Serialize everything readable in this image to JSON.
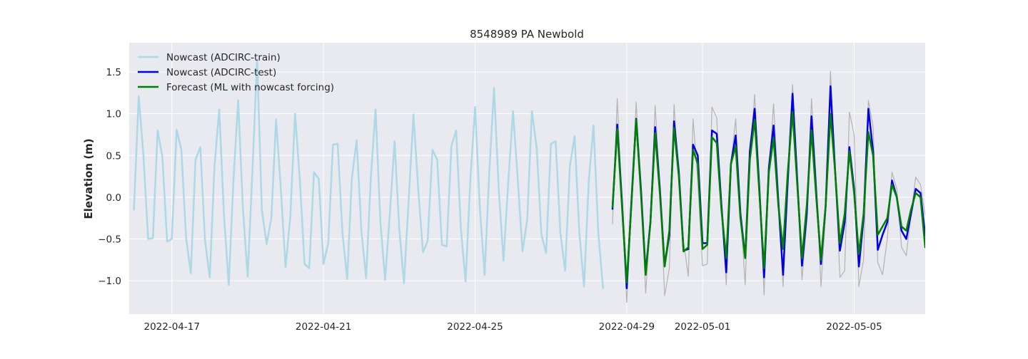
{
  "chart_data": {
    "type": "line",
    "title": "8548989 PA Newbold",
    "xlabel": "",
    "ylabel": "Elevation (m)",
    "xlim": [
      "2022-04-15T21:00",
      "2022-05-06T21:00"
    ],
    "ylim": [
      -1.4,
      1.85
    ],
    "x_ticks": [
      "2022-04-17",
      "2022-04-21",
      "2022-04-25",
      "2022-04-29",
      "2022-05-01",
      "2022-05-05"
    ],
    "y_ticks": [
      -1.0,
      -0.5,
      0.0,
      0.5,
      1.0,
      1.5
    ],
    "y_tick_labels": [
      "−1.0",
      "−0.5",
      "0.0",
      "0.5",
      "1.0",
      "1.5"
    ],
    "grid": true,
    "legend_position": "top-left",
    "style": {
      "plot_bg": "#e9e9f0",
      "grid": "#ffffff"
    },
    "series": [
      {
        "name": "Nowcast (ADCIRC-train)",
        "color": "#add8e6",
        "width": 2.5,
        "legend": true,
        "x": [
          "2022-04-16T00:00",
          "2022-04-16T03:00",
          "2022-04-16T06:00",
          "2022-04-16T09:00",
          "2022-04-16T12:00",
          "2022-04-16T15:00",
          "2022-04-16T18:00",
          "2022-04-16T21:00",
          "2022-04-17T00:00",
          "2022-04-17T03:00",
          "2022-04-17T06:00",
          "2022-04-17T09:00",
          "2022-04-17T12:00",
          "2022-04-17T15:00",
          "2022-04-17T18:00",
          "2022-04-17T21:00",
          "2022-04-18T00:00",
          "2022-04-18T03:00",
          "2022-04-18T06:00",
          "2022-04-18T09:00",
          "2022-04-18T12:00",
          "2022-04-18T15:00",
          "2022-04-18T18:00",
          "2022-04-18T21:00",
          "2022-04-19T00:00",
          "2022-04-19T03:00",
          "2022-04-19T06:00",
          "2022-04-19T09:00",
          "2022-04-19T12:00",
          "2022-04-19T15:00",
          "2022-04-19T18:00",
          "2022-04-19T21:00",
          "2022-04-20T00:00",
          "2022-04-20T03:00",
          "2022-04-20T06:00",
          "2022-04-20T09:00",
          "2022-04-20T12:00",
          "2022-04-20T15:00",
          "2022-04-20T18:00",
          "2022-04-20T21:00",
          "2022-04-21T00:00",
          "2022-04-21T03:00",
          "2022-04-21T06:00",
          "2022-04-21T09:00",
          "2022-04-21T12:00",
          "2022-04-21T15:00",
          "2022-04-21T18:00",
          "2022-04-21T21:00",
          "2022-04-22T00:00",
          "2022-04-22T03:00",
          "2022-04-22T06:00",
          "2022-04-22T09:00",
          "2022-04-22T12:00",
          "2022-04-22T15:00",
          "2022-04-22T18:00",
          "2022-04-22T21:00",
          "2022-04-23T00:00",
          "2022-04-23T03:00",
          "2022-04-23T06:00",
          "2022-04-23T09:00",
          "2022-04-23T12:00",
          "2022-04-23T15:00",
          "2022-04-23T18:00",
          "2022-04-23T21:00",
          "2022-04-24T00:00",
          "2022-04-24T03:00",
          "2022-04-24T06:00",
          "2022-04-24T09:00",
          "2022-04-24T12:00",
          "2022-04-24T15:00",
          "2022-04-24T18:00",
          "2022-04-24T21:00",
          "2022-04-25T00:00",
          "2022-04-25T03:00",
          "2022-04-25T06:00",
          "2022-04-25T09:00",
          "2022-04-25T12:00",
          "2022-04-25T15:00",
          "2022-04-25T18:00",
          "2022-04-25T21:00",
          "2022-04-26T00:00",
          "2022-04-26T03:00",
          "2022-04-26T06:00",
          "2022-04-26T09:00",
          "2022-04-26T12:00",
          "2022-04-26T15:00",
          "2022-04-26T18:00",
          "2022-04-26T21:00",
          "2022-04-27T00:00",
          "2022-04-27T03:00",
          "2022-04-27T06:00",
          "2022-04-27T09:00",
          "2022-04-27T12:00",
          "2022-04-27T15:00",
          "2022-04-27T18:00",
          "2022-04-27T21:00",
          "2022-04-28T00:00",
          "2022-04-28T03:00",
          "2022-04-28T06:00",
          "2022-04-28T09:00"
        ],
        "y": [
          -0.15,
          1.21,
          0.5,
          -0.5,
          -0.49,
          0.8,
          0.48,
          -0.53,
          -0.5,
          0.81,
          0.57,
          -0.48,
          -0.91,
          0.45,
          0.6,
          -0.52,
          -0.96,
          0.38,
          1.05,
          -0.21,
          -1.05,
          0.2,
          1.16,
          -0.14,
          -0.95,
          0.31,
          1.65,
          -0.15,
          -0.56,
          -0.25,
          0.93,
          0.1,
          -0.84,
          -0.23,
          1.0,
          0.22,
          -0.8,
          -0.85,
          0.3,
          0.22,
          -0.8,
          -0.55,
          0.63,
          0.64,
          -0.43,
          -0.98,
          0.23,
          0.68,
          -0.4,
          -0.97,
          0.24,
          1.05,
          -0.29,
          -0.99,
          -0.21,
          0.67,
          -0.38,
          -1.03,
          -0.01,
          0.99,
          0.09,
          -0.66,
          -0.52,
          0.57,
          0.45,
          -0.57,
          -0.59,
          0.61,
          0.8,
          -0.38,
          -1.01,
          0.22,
          1.08,
          -0.12,
          -0.93,
          0.3,
          1.31,
          0.08,
          -0.76,
          0.19,
          1.03,
          0.22,
          -0.65,
          -0.27,
          1.03,
          0.59,
          -0.45,
          -0.67,
          0.64,
          0.67,
          -0.43,
          -0.88,
          0.37,
          0.73,
          -0.42,
          -1.07,
          0.2,
          0.86,
          -0.43,
          -1.09
        ]
      },
      {
        "name": "",
        "color": "#b3b3b3",
        "width": 1.2,
        "legend": false,
        "x": [
          "2022-04-28T15:00",
          "2022-04-28T18:00",
          "2022-04-28T21:00",
          "2022-04-29T00:00",
          "2022-04-29T03:00",
          "2022-04-29T06:00",
          "2022-04-29T09:00",
          "2022-04-29T12:00",
          "2022-04-29T15:00",
          "2022-04-29T18:00",
          "2022-04-29T21:00",
          "2022-04-30T00:00",
          "2022-04-30T03:00",
          "2022-04-30T06:00",
          "2022-04-30T09:00",
          "2022-04-30T12:00",
          "2022-04-30T15:00",
          "2022-04-30T18:00",
          "2022-04-30T21:00",
          "2022-05-01T00:00",
          "2022-05-01T03:00",
          "2022-05-01T06:00",
          "2022-05-01T09:00",
          "2022-05-01T12:00",
          "2022-05-01T15:00",
          "2022-05-01T18:00",
          "2022-05-01T21:00",
          "2022-05-02T00:00",
          "2022-05-02T03:00",
          "2022-05-02T06:00",
          "2022-05-02T09:00",
          "2022-05-02T12:00",
          "2022-05-02T15:00",
          "2022-05-02T18:00",
          "2022-05-02T21:00",
          "2022-05-03T00:00",
          "2022-05-03T03:00",
          "2022-05-03T06:00",
          "2022-05-03T09:00",
          "2022-05-03T12:00",
          "2022-05-03T15:00",
          "2022-05-03T18:00",
          "2022-05-03T21:00",
          "2022-05-04T00:00",
          "2022-05-04T03:00",
          "2022-05-04T06:00",
          "2022-05-04T09:00",
          "2022-05-04T12:00",
          "2022-05-04T15:00",
          "2022-05-04T18:00",
          "2022-05-04T21:00",
          "2022-05-05T00:00",
          "2022-05-05T03:00",
          "2022-05-05T06:00",
          "2022-05-05T09:00",
          "2022-05-05T12:00",
          "2022-05-05T15:00",
          "2022-05-05T18:00",
          "2022-05-05T21:00",
          "2022-05-06T00:00",
          "2022-05-06T03:00",
          "2022-05-06T06:00",
          "2022-05-06T09:00",
          "2022-05-06T12:00",
          "2022-05-06T15:00",
          "2022-05-06T18:00",
          "2022-05-06T21:00"
        ],
        "y": [
          -0.32,
          1.18,
          -0.05,
          -1.26,
          -0.1,
          1.14,
          0.1,
          -1.15,
          -0.3,
          1.1,
          0.15,
          -1.18,
          -0.85,
          1.11,
          0.25,
          -0.53,
          -0.95,
          0.94,
          0.2,
          -0.82,
          -0.8,
          1.08,
          0.95,
          -0.1,
          -1.05,
          0.4,
          0.94,
          -0.15,
          -1.05,
          0.4,
          1.23,
          0.2,
          -1.17,
          0.3,
          1.12,
          0.05,
          -1.07,
          0.2,
          1.35,
          0.3,
          -0.99,
          -0.3,
          1.18,
          0.2,
          -1.07,
          -0.2,
          1.51,
          0.35,
          -0.96,
          -0.88,
          1.02,
          0.75,
          -1.07,
          -0.75,
          1.16,
          0.85,
          -0.78,
          -0.93,
          -0.5,
          0.3,
          0.1,
          -0.6,
          -0.7,
          -0.2,
          0.24,
          0.15,
          -0.22
        ]
      },
      {
        "name": "Nowcast (ADCIRC-test)",
        "color": "#0000e0",
        "width": 2.5,
        "legend": true,
        "x": [
          "2022-04-28T15:00",
          "2022-04-28T18:00",
          "2022-04-28T21:00",
          "2022-04-29T00:00",
          "2022-04-29T03:00",
          "2022-04-29T06:00",
          "2022-04-29T09:00",
          "2022-04-29T12:00",
          "2022-04-29T15:00",
          "2022-04-29T18:00",
          "2022-04-29T21:00",
          "2022-04-30T00:00",
          "2022-04-30T03:00",
          "2022-04-30T06:00",
          "2022-04-30T09:00",
          "2022-04-30T12:00",
          "2022-04-30T15:00",
          "2022-04-30T18:00",
          "2022-04-30T21:00",
          "2022-05-01T00:00",
          "2022-05-01T03:00",
          "2022-05-01T06:00",
          "2022-05-01T09:00",
          "2022-05-01T12:00",
          "2022-05-01T15:00",
          "2022-05-01T18:00",
          "2022-05-01T21:00",
          "2022-05-02T00:00",
          "2022-05-02T03:00",
          "2022-05-02T06:00",
          "2022-05-02T09:00",
          "2022-05-02T12:00",
          "2022-05-02T15:00",
          "2022-05-02T18:00",
          "2022-05-02T21:00",
          "2022-05-03T00:00",
          "2022-05-03T03:00",
          "2022-05-03T06:00",
          "2022-05-03T09:00",
          "2022-05-03T12:00",
          "2022-05-03T15:00",
          "2022-05-03T18:00",
          "2022-05-03T21:00",
          "2022-05-04T00:00",
          "2022-05-04T03:00",
          "2022-05-04T06:00",
          "2022-05-04T09:00",
          "2022-05-04T12:00",
          "2022-05-04T15:00",
          "2022-05-04T18:00",
          "2022-05-04T21:00",
          "2022-05-05T00:00",
          "2022-05-05T03:00",
          "2022-05-05T06:00",
          "2022-05-05T09:00",
          "2022-05-05T12:00",
          "2022-05-05T15:00",
          "2022-05-05T18:00",
          "2022-05-05T21:00",
          "2022-05-06T00:00",
          "2022-05-06T03:00",
          "2022-05-06T06:00",
          "2022-05-06T09:00",
          "2022-05-06T12:00",
          "2022-05-06T15:00",
          "2022-05-06T18:00",
          "2022-05-06T21:00"
        ],
        "y": [
          -0.14,
          0.87,
          -0.05,
          -1.09,
          -0.05,
          0.94,
          0.1,
          -0.9,
          -0.3,
          0.84,
          0.1,
          -0.82,
          -0.45,
          0.91,
          0.3,
          -0.64,
          -0.62,
          0.63,
          0.5,
          -0.55,
          -0.55,
          0.8,
          0.76,
          -0.1,
          -0.9,
          0.4,
          0.74,
          -0.2,
          -0.72,
          0.55,
          1.06,
          0.1,
          -0.96,
          0.35,
          0.86,
          -0.05,
          -0.93,
          0.2,
          1.24,
          0.2,
          -0.82,
          -0.2,
          0.97,
          0.05,
          -0.8,
          -0.1,
          1.33,
          0.3,
          -0.64,
          -0.3,
          0.6,
          0.1,
          -0.83,
          -0.25,
          1.06,
          0.55,
          -0.63,
          -0.45,
          -0.3,
          0.2,
          0.0,
          -0.4,
          -0.5,
          -0.2,
          0.1,
          0.05,
          -0.46
        ]
      },
      {
        "name": "Forecast (ML with nowcast forcing)",
        "color": "#008000",
        "width": 2.5,
        "legend": true,
        "x": [
          "2022-04-28T15:00",
          "2022-04-28T18:00",
          "2022-04-28T21:00",
          "2022-04-29T00:00",
          "2022-04-29T03:00",
          "2022-04-29T06:00",
          "2022-04-29T09:00",
          "2022-04-29T12:00",
          "2022-04-29T15:00",
          "2022-04-29T18:00",
          "2022-04-29T21:00",
          "2022-04-30T00:00",
          "2022-04-30T03:00",
          "2022-04-30T06:00",
          "2022-04-30T09:00",
          "2022-04-30T12:00",
          "2022-04-30T15:00",
          "2022-04-30T18:00",
          "2022-04-30T21:00",
          "2022-05-01T00:00",
          "2022-05-01T03:00",
          "2022-05-01T06:00",
          "2022-05-01T09:00",
          "2022-05-01T12:00",
          "2022-05-01T15:00",
          "2022-05-01T18:00",
          "2022-05-01T21:00",
          "2022-05-02T00:00",
          "2022-05-02T03:00",
          "2022-05-02T06:00",
          "2022-05-02T09:00",
          "2022-05-02T12:00",
          "2022-05-02T15:00",
          "2022-05-02T18:00",
          "2022-05-02T21:00",
          "2022-05-03T00:00",
          "2022-05-03T03:00",
          "2022-05-03T06:00",
          "2022-05-03T09:00",
          "2022-05-03T12:00",
          "2022-05-03T15:00",
          "2022-05-03T18:00",
          "2022-05-03T21:00",
          "2022-05-04T00:00",
          "2022-05-04T03:00",
          "2022-05-04T06:00",
          "2022-05-04T09:00",
          "2022-05-04T12:00",
          "2022-05-04T15:00",
          "2022-05-04T18:00",
          "2022-05-04T21:00",
          "2022-05-05T00:00",
          "2022-05-05T03:00",
          "2022-05-05T06:00",
          "2022-05-05T09:00",
          "2022-05-05T12:00",
          "2022-05-05T15:00",
          "2022-05-05T18:00",
          "2022-05-05T21:00",
          "2022-05-06T00:00",
          "2022-05-06T03:00",
          "2022-05-06T06:00",
          "2022-05-06T09:00",
          "2022-05-06T12:00",
          "2022-05-06T15:00",
          "2022-05-06T18:00",
          "2022-05-06T21:00"
        ],
        "y": [
          -0.12,
          0.82,
          -0.1,
          -1.02,
          -0.08,
          0.93,
          0.05,
          -0.93,
          -0.3,
          0.77,
          0.05,
          -0.83,
          -0.4,
          0.83,
          0.25,
          -0.65,
          -0.6,
          0.57,
          0.4,
          -0.62,
          -0.57,
          0.72,
          0.65,
          -0.15,
          -0.73,
          0.4,
          0.61,
          -0.25,
          -0.73,
          0.45,
          0.93,
          0.05,
          -0.85,
          0.3,
          0.71,
          -0.1,
          -0.62,
          0.3,
          1.02,
          0.15,
          -0.73,
          -0.1,
          0.8,
          0.0,
          -0.75,
          -0.1,
          1.0,
          0.3,
          -0.55,
          -0.2,
          0.55,
          0.05,
          -0.68,
          -0.2,
          0.78,
          0.5,
          -0.45,
          -0.35,
          -0.25,
          0.15,
          0.0,
          -0.35,
          -0.4,
          -0.15,
          0.05,
          0.0,
          -0.6
        ]
      }
    ]
  }
}
